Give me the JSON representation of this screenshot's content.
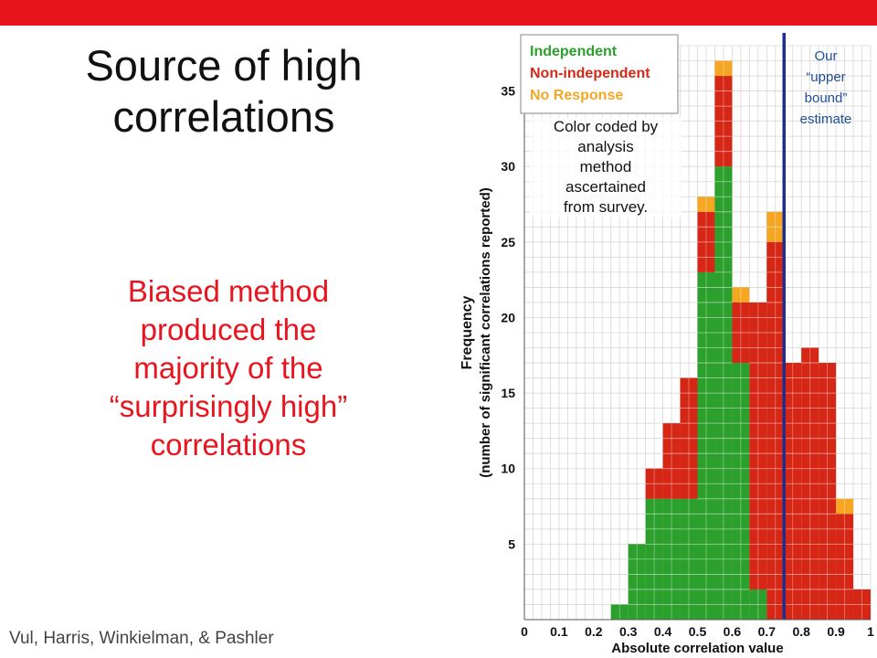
{
  "slide": {
    "title": "Source of high\ncorrelations",
    "body": "Biased method\n   produced the\nmajority of the\n“surprisingly high”\ncorrelations",
    "citation": "Vul, Harris, Winkielman, & Pashler",
    "annotation": "Color coded by\nanalysis\nmethod\nascertained\nfrom survey.",
    "bound_note": "Our\n“upper\nbound”\nestimate",
    "accent_color": "#e8141e"
  },
  "chart_data": {
    "type": "bar",
    "xlabel": "Absolute correlation value",
    "ylabel": "Frequency",
    "ylabel_sub": "(number of significant correlations reported)",
    "xticks": [
      "0",
      "0.1",
      "0.2",
      "0.3",
      "0.4",
      "0.5",
      "0.6",
      "0.7",
      "0.8",
      "0.9",
      "1"
    ],
    "yticks": [
      5,
      10,
      15,
      20,
      25,
      30,
      35
    ],
    "xlim": [
      0,
      1
    ],
    "ylim": [
      0,
      38
    ],
    "bin_width": 0.05,
    "bin_starts": [
      0.25,
      0.3,
      0.35,
      0.4,
      0.45,
      0.5,
      0.55,
      0.6,
      0.65,
      0.7,
      0.75,
      0.8,
      0.85,
      0.9,
      0.95
    ],
    "series": [
      {
        "name": "Independent",
        "color": "#2ca02c",
        "values": [
          1,
          5,
          8,
          8,
          8,
          23,
          30,
          17,
          2,
          0,
          0,
          0,
          0,
          0,
          0
        ]
      },
      {
        "name": "Non-independent",
        "color": "#d62716",
        "values": [
          0,
          0,
          2,
          5,
          8,
          4,
          6,
          4,
          19,
          25,
          17,
          18,
          17,
          7,
          2
        ]
      },
      {
        "name": "No Response",
        "color": "#f5a623",
        "values": [
          0,
          0,
          0,
          0,
          0,
          1,
          1,
          1,
          0,
          2,
          0,
          0,
          0,
          1,
          0
        ]
      }
    ],
    "reference_line": {
      "x": 0.75,
      "color": "#1f2d8c"
    },
    "legend_position": "top-left",
    "grid": true
  }
}
